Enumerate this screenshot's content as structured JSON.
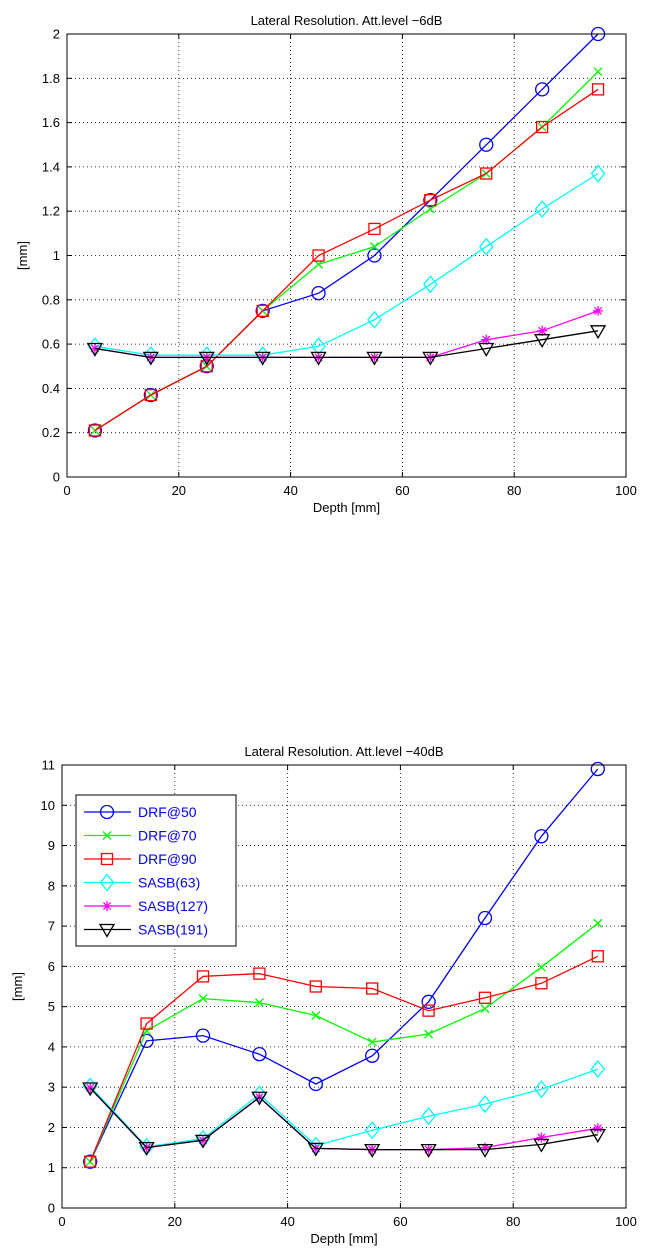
{
  "chart_data": [
    {
      "type": "line",
      "title": "Lateral Resolution. Att.level −6dB",
      "xlabel": "Depth [mm]",
      "ylabel": "[mm]",
      "xlim": [
        0,
        100
      ],
      "ylim": [
        0,
        2
      ],
      "xticks": [
        0,
        20,
        40,
        60,
        80,
        100
      ],
      "yticks": [
        0,
        0.2,
        0.4,
        0.6,
        0.8,
        1,
        1.2,
        1.4,
        1.6,
        1.8,
        2
      ],
      "yticklabels": [
        "0",
        "0.2",
        "0.4",
        "0.6",
        "0.8",
        "1",
        "1.2",
        "1.4",
        "1.6",
        "1.8",
        "2"
      ],
      "grid": true,
      "legend": null,
      "x": [
        5,
        15,
        25,
        35,
        45,
        55,
        65,
        75,
        85,
        95
      ],
      "series": [
        {
          "name": "DRF@50",
          "color": "#0000ff",
          "marker": "circle",
          "values": [
            0.21,
            0.37,
            0.5,
            0.75,
            0.83,
            1.0,
            1.25,
            1.5,
            1.75,
            2.0
          ]
        },
        {
          "name": "DRF@70",
          "color": "#00ff00",
          "marker": "x",
          "values": [
            0.21,
            0.37,
            0.5,
            0.75,
            0.96,
            1.04,
            1.21,
            1.37,
            1.58,
            1.83
          ]
        },
        {
          "name": "DRF@90",
          "color": "#ff0000",
          "marker": "square",
          "values": [
            0.21,
            0.37,
            0.5,
            0.75,
            1.0,
            1.12,
            1.25,
            1.37,
            1.58,
            1.75
          ]
        },
        {
          "name": "SASB(63)",
          "color": "#00ffff",
          "marker": "diamond",
          "values": [
            0.59,
            0.55,
            0.55,
            0.55,
            0.59,
            0.71,
            0.87,
            1.04,
            1.21,
            1.37
          ]
        },
        {
          "name": "SASB(127)",
          "color": "#ff00ff",
          "marker": "asterisk",
          "values": [
            0.58,
            0.54,
            0.54,
            0.54,
            0.54,
            0.54,
            0.54,
            0.62,
            0.66,
            0.75
          ]
        },
        {
          "name": "SASB(191)",
          "color": "#000000",
          "marker": "triangle-down",
          "values": [
            0.58,
            0.54,
            0.54,
            0.54,
            0.54,
            0.54,
            0.54,
            0.58,
            0.62,
            0.66
          ]
        }
      ]
    },
    {
      "type": "line",
      "title": "Lateral Resolution. Att.level −40dB",
      "xlabel": "Depth [mm]",
      "ylabel": "[mm]",
      "xlim": [
        0,
        100
      ],
      "ylim": [
        0,
        11
      ],
      "xticks": [
        0,
        20,
        40,
        60,
        80,
        100
      ],
      "yticks": [
        0,
        1,
        2,
        3,
        4,
        5,
        6,
        7,
        8,
        9,
        10,
        11
      ],
      "yticklabels": [
        "0",
        "1",
        "2",
        "3",
        "4",
        "5",
        "6",
        "7",
        "8",
        "9",
        "10",
        "11"
      ],
      "grid": true,
      "legend": "top-left",
      "x": [
        5,
        15,
        25,
        35,
        45,
        55,
        65,
        75,
        85,
        95
      ],
      "series": [
        {
          "name": "DRF@50",
          "color": "#0000ff",
          "marker": "circle",
          "values": [
            1.15,
            4.15,
            4.28,
            3.82,
            3.08,
            3.78,
            5.12,
            7.2,
            9.23,
            10.9
          ]
        },
        {
          "name": "DRF@70",
          "color": "#00ff00",
          "marker": "x",
          "values": [
            1.15,
            4.4,
            5.2,
            5.1,
            4.78,
            4.12,
            4.32,
            4.95,
            5.98,
            7.07
          ]
        },
        {
          "name": "DRF@90",
          "color": "#ff0000",
          "marker": "square",
          "values": [
            1.15,
            4.58,
            5.75,
            5.82,
            5.5,
            5.45,
            4.9,
            5.22,
            5.58,
            6.25
          ]
        },
        {
          "name": "SASB(63)",
          "color": "#00ffff",
          "marker": "diamond",
          "values": [
            3.02,
            1.52,
            1.72,
            2.82,
            1.55,
            1.93,
            2.28,
            2.58,
            2.95,
            3.45
          ]
        },
        {
          "name": "SASB(127)",
          "color": "#ff00ff",
          "marker": "asterisk",
          "values": [
            2.98,
            1.5,
            1.68,
            2.75,
            1.48,
            1.45,
            1.45,
            1.5,
            1.75,
            1.98
          ]
        },
        {
          "name": "SASB(191)",
          "color": "#000000",
          "marker": "triangle-down",
          "values": [
            2.98,
            1.5,
            1.68,
            2.75,
            1.48,
            1.45,
            1.45,
            1.45,
            1.58,
            1.82
          ]
        }
      ]
    }
  ]
}
